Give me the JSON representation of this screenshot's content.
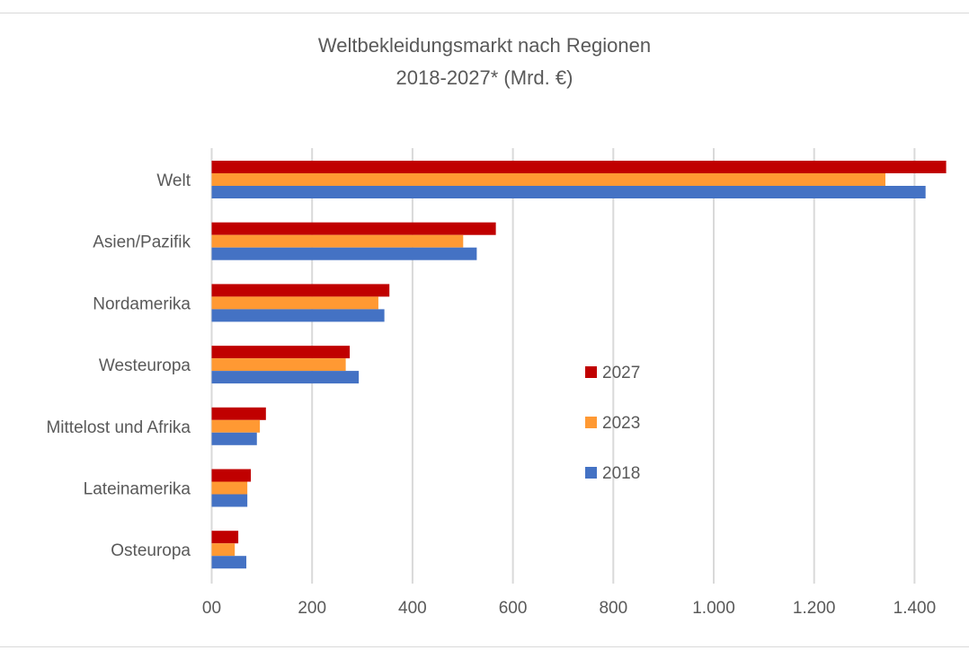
{
  "chart_data": {
    "type": "bar",
    "orientation": "horizontal",
    "title": "Weltbekleidungsmarkt nach Regionen",
    "subtitle": "2018-2027* (Mrd. €)",
    "xlabel": "",
    "ylabel": "",
    "categories": [
      "Welt",
      "Asien/Pazifik",
      "Nordamerika",
      "Westeuropa",
      "Mittelost und Afrika",
      "Lateinamerika",
      "Osteuropa"
    ],
    "series": [
      {
        "name": "2027",
        "color": "#c00000",
        "values": [
          1463,
          566,
          354,
          275,
          108,
          78,
          53
        ]
      },
      {
        "name": "2023",
        "color": "#ff9933",
        "values": [
          1342,
          501,
          332,
          267,
          96,
          71,
          46
        ]
      },
      {
        "name": "2018",
        "color": "#4472c4",
        "values": [
          1422,
          528,
          344,
          293,
          90,
          71,
          69
        ]
      }
    ],
    "xlim": [
      0,
      1400
    ],
    "xticks": [
      0,
      200,
      400,
      600,
      800,
      1000,
      1200,
      1400
    ],
    "xtick_labels": [
      "00",
      "200",
      "400",
      "600",
      "800",
      "1.000",
      "1.200",
      "1.400"
    ],
    "grid": "vertical",
    "legend_position": "center-right"
  }
}
